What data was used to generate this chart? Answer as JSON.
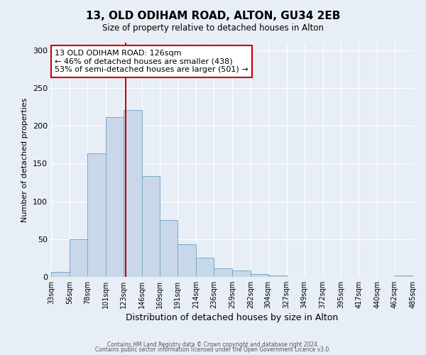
{
  "title": "13, OLD ODIHAM ROAD, ALTON, GU34 2EB",
  "subtitle": "Size of property relative to detached houses in Alton",
  "xlabel": "Distribution of detached houses by size in Alton",
  "ylabel": "Number of detached properties",
  "bar_color": "#c8d8ea",
  "bar_edge_color": "#7aaac8",
  "background_color": "#e8eef5",
  "grid_color": "#ffffff",
  "vline_x": 126,
  "vline_color": "#cc0000",
  "annotation_text": "13 OLD ODIHAM ROAD: 126sqm\n← 46% of detached houses are smaller (438)\n53% of semi-detached houses are larger (501) →",
  "annotation_box_color": "#ffffff",
  "annotation_box_edge_color": "#cc0000",
  "bins": [
    33,
    56,
    78,
    101,
    123,
    146,
    169,
    191,
    214,
    236,
    259,
    282,
    304,
    327,
    349,
    372,
    395,
    417,
    440,
    462,
    485
  ],
  "counts": [
    7,
    50,
    163,
    211,
    221,
    133,
    75,
    43,
    25,
    11,
    8,
    4,
    2,
    0,
    0,
    0,
    0,
    0,
    0,
    2
  ],
  "ylim": [
    0,
    310
  ],
  "yticks": [
    0,
    50,
    100,
    150,
    200,
    250,
    300
  ],
  "footer1": "Contains HM Land Registry data © Crown copyright and database right 2024.",
  "footer2": "Contains public sector information licensed under the Open Government Licence v3.0."
}
